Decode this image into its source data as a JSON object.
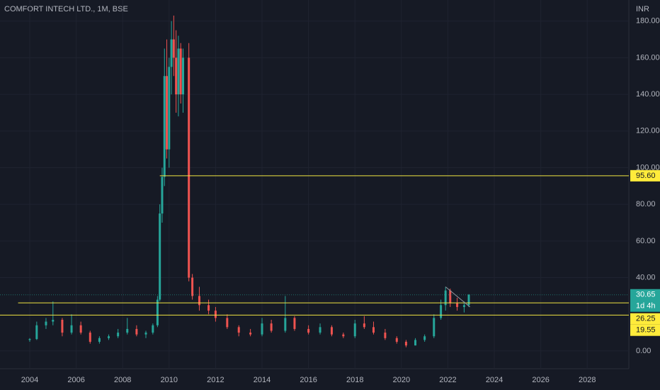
{
  "chart_data": {
    "type": "candlestick",
    "title": "COMFORT INTECH LTD., 1M, BSE",
    "currency": "INR",
    "xlim": [
      2002.72,
      2029.79
    ],
    "xticks": [
      2004,
      2006,
      2008,
      2010,
      2012,
      2014,
      2016,
      2018,
      2020,
      2022,
      2024,
      2026,
      2028
    ],
    "ylim": [
      -9.7,
      191.5
    ],
    "yticks": [
      {
        "value": 0,
        "label": "0.00"
      },
      {
        "value": 40,
        "label": "40.00"
      },
      {
        "value": 60,
        "label": "60.00"
      },
      {
        "value": 80,
        "label": "80.00"
      },
      {
        "value": 100,
        "label": "100.00"
      },
      {
        "value": 120,
        "label": "120.00"
      },
      {
        "value": 140,
        "label": "140.00"
      },
      {
        "value": 160,
        "label": "160.00"
      },
      {
        "value": 180,
        "label": "180.00"
      }
    ],
    "grid": true,
    "up_color": "#26a69a",
    "down_color": "#ef5350",
    "candles": {
      "x": [
        2004.0,
        2004.3,
        2004.7,
        2005.0,
        2005.4,
        2005.8,
        2006.2,
        2006.6,
        2007.0,
        2007.4,
        2007.8,
        2008.2,
        2008.6,
        2009.0,
        2009.3,
        2009.5,
        2009.6,
        2009.7,
        2009.8,
        2009.9,
        2010.0,
        2010.1,
        2010.2,
        2010.3,
        2010.4,
        2010.5,
        2010.6,
        2010.85,
        2011.0,
        2011.3,
        2011.7,
        2012.0,
        2012.5,
        2013.0,
        2013.5,
        2014.0,
        2014.4,
        2015.0,
        2015.4,
        2016.0,
        2016.5,
        2017.0,
        2017.5,
        2018.0,
        2018.4,
        2018.8,
        2019.3,
        2019.8,
        2020.2,
        2020.6,
        2021.0,
        2021.4,
        2021.7,
        2021.9,
        2022.1,
        2022.4,
        2022.7,
        2022.9
      ],
      "open": [
        6,
        6.5,
        14,
        16,
        17,
        10,
        14,
        10,
        5,
        7,
        8,
        10,
        12,
        9,
        10,
        14,
        28,
        75,
        95,
        150,
        110,
        155,
        170,
        160,
        140,
        165,
        140,
        160,
        40,
        30,
        25,
        22,
        18,
        13,
        10,
        9,
        15,
        11,
        18,
        12,
        10,
        13,
        9,
        8,
        15,
        13,
        10,
        7,
        5,
        3,
        6,
        8,
        18,
        25,
        33,
        26,
        24,
        25
      ],
      "high": [
        7,
        16,
        18,
        27,
        18,
        20,
        16,
        11,
        8,
        9,
        12,
        18,
        14,
        11,
        15,
        30,
        80,
        100,
        165,
        170,
        160,
        180,
        183,
        175,
        172,
        168,
        165,
        168,
        42,
        35,
        28,
        24,
        20,
        14,
        12,
        18,
        17,
        30,
        19,
        14,
        15,
        14,
        10,
        17,
        19,
        16,
        12,
        8,
        6,
        7,
        9,
        20,
        28,
        35,
        34,
        29,
        27,
        31
      ],
      "low": [
        5,
        6,
        12,
        14,
        8,
        9,
        9,
        4,
        4,
        6,
        7,
        9,
        8,
        7,
        9,
        13,
        27,
        70,
        90,
        105,
        100,
        140,
        150,
        130,
        128,
        135,
        130,
        38,
        28,
        22,
        20,
        16,
        12,
        8,
        8,
        8,
        10,
        10,
        11,
        9,
        9,
        8,
        7,
        7,
        12,
        9,
        6,
        4,
        2,
        3,
        5,
        7,
        17,
        22,
        24,
        22,
        21,
        24
      ],
      "close": [
        6.5,
        14,
        16,
        17,
        10,
        14,
        10,
        5,
        7,
        8,
        10,
        12,
        9,
        10,
        14,
        28,
        75,
        95,
        150,
        110,
        155,
        170,
        160,
        140,
        165,
        140,
        160,
        40,
        30,
        25,
        22,
        18,
        13,
        10,
        9,
        15,
        11,
        18,
        12,
        10,
        13,
        9,
        8,
        15,
        13,
        10,
        7,
        5,
        3,
        6,
        8,
        18,
        25,
        33,
        26,
        24,
        25,
        30.65
      ]
    },
    "horizontal_lines": [
      {
        "value": 95.6,
        "label": "95.60",
        "from": 2009.6
      },
      {
        "value": 26.25,
        "label": "26.25",
        "from": 2003.5
      },
      {
        "value": 19.55,
        "label": "19.55",
        "from": 2002.72
      }
    ],
    "trendline": {
      "x": [
        2021.9,
        2022.95
      ],
      "y": [
        35,
        24
      ]
    },
    "last_price": {
      "value": 30.65,
      "label": "30.65"
    },
    "countdown": "1d 4h"
  }
}
